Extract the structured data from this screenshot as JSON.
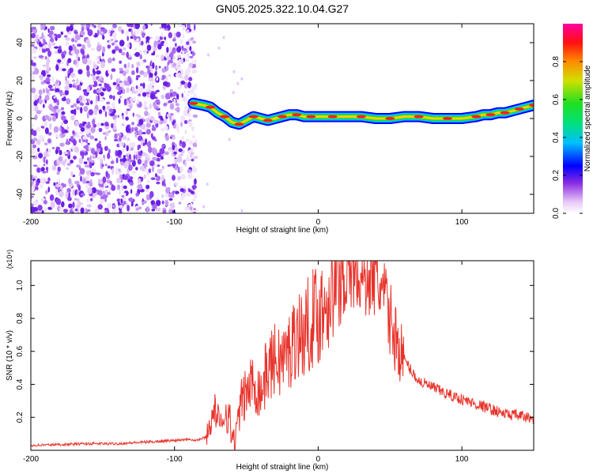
{
  "title": "GN05.2025.322.10.04.G27",
  "colors": {
    "line": "#e8332b",
    "axis": "#000000",
    "noise": "#7d3df0",
    "ridge_core": "#ff2020"
  },
  "chart_data": [
    {
      "type": "heatmap",
      "name": "spectrogram",
      "title": "GN05.2025.322.10.04.G27",
      "xlabel": "Height of straight line (km)",
      "ylabel": "Frequency (Hz)",
      "xlim": [
        -200,
        150
      ],
      "ylim": [
        -50,
        50
      ],
      "xticks": [
        -200,
        -100,
        0,
        100
      ],
      "xtick_labels": [
        "-200",
        "-100",
        "0",
        "100"
      ],
      "yticks": [
        -40,
        -20,
        0,
        20,
        40
      ],
      "ytick_labels": [
        "-40",
        "-20",
        "0",
        "20",
        "40"
      ],
      "noise_region_x": [
        -200,
        -85
      ],
      "ridge": {
        "x": [
          -87,
          -80,
          -75,
          -70,
          -65,
          -60,
          -55,
          -50,
          -45,
          -40,
          -35,
          -30,
          -25,
          -20,
          -15,
          -10,
          -5,
          0,
          10,
          20,
          30,
          40,
          50,
          60,
          70,
          80,
          90,
          100,
          110,
          115,
          120,
          125,
          130,
          135,
          140,
          145,
          150
        ],
        "freq": [
          8,
          7,
          6,
          3,
          1,
          -2,
          -3,
          -1,
          1,
          0,
          -1,
          0,
          1,
          2,
          2,
          1,
          1,
          1,
          1,
          1,
          1,
          0,
          0,
          1,
          1,
          0,
          0,
          0,
          1,
          2,
          2,
          3,
          3,
          4,
          5,
          6,
          7
        ]
      },
      "colorbar": {
        "label": "Normalized spectral amplitude",
        "range": [
          0,
          1
        ],
        "ticks": [
          0.0,
          0.2,
          0.4,
          0.6,
          0.8
        ],
        "tick_labels": [
          "0.0",
          "0.2",
          "0.4",
          "0.6",
          "0.8"
        ]
      }
    },
    {
      "type": "line",
      "name": "snr",
      "xlabel": "Height of straight line (km)",
      "ylabel": "SNR (10 * v/v)",
      "multiplier": "(x10⁴)",
      "xlim": [
        -200,
        150
      ],
      "ylim": [
        0,
        1.15
      ],
      "xticks": [
        -200,
        -100,
        0,
        100
      ],
      "xtick_labels": [
        "-200",
        "-100",
        "0",
        "100"
      ],
      "yticks": [
        0.2,
        0.4,
        0.6,
        0.8,
        1.0
      ],
      "ytick_labels": [
        "0.2",
        "0.4",
        "0.6",
        "0.8",
        "1.0"
      ],
      "series": [
        {
          "name": "SNR",
          "x": [
            -200,
            -180,
            -160,
            -140,
            -120,
            -100,
            -90,
            -85,
            -78,
            -72,
            -70,
            -68,
            -65,
            -62,
            -60,
            -57,
            -55,
            -50,
            -45,
            -40,
            -35,
            -30,
            -25,
            -20,
            -15,
            -10,
            -5,
            0,
            5,
            10,
            15,
            20,
            25,
            30,
            35,
            40,
            45,
            50,
            55,
            60,
            65,
            70,
            80,
            90,
            100,
            110,
            120,
            130,
            140,
            150
          ],
          "y": [
            0.03,
            0.035,
            0.04,
            0.04,
            0.05,
            0.06,
            0.07,
            0.06,
            0.08,
            0.25,
            0.2,
            0.12,
            0.25,
            0.2,
            0.08,
            0.05,
            0.25,
            0.35,
            0.42,
            0.35,
            0.5,
            0.55,
            0.55,
            0.6,
            0.72,
            0.7,
            0.8,
            0.82,
            0.9,
            1.0,
            1.05,
            1.12,
            1.12,
            1.05,
            1.08,
            1.05,
            0.95,
            0.8,
            0.65,
            0.55,
            0.48,
            0.42,
            0.38,
            0.34,
            0.31,
            0.28,
            0.25,
            0.22,
            0.21,
            0.19
          ]
        }
      ]
    }
  ]
}
